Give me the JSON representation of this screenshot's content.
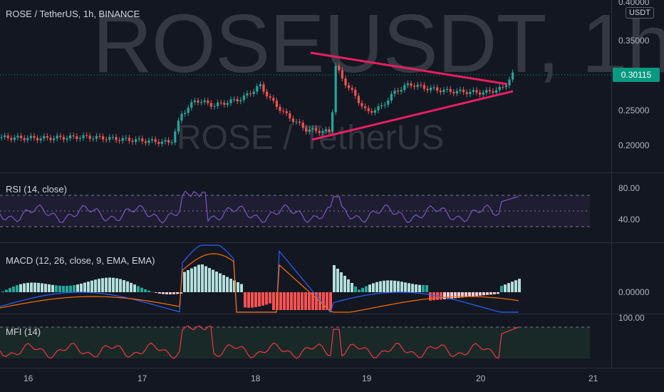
{
  "chart_header": {
    "title": "ROSE / TetherUS, 1h, BINANCE"
  },
  "watermark": {
    "symbol_interval": "ROSEUSDT, 1h",
    "description": "ROSE / TetherUS"
  },
  "price_axis": {
    "currency": "USDT",
    "ticks": [
      "0.40000",
      "0.35000",
      "0.25000",
      "0.20000"
    ],
    "last_price": "0.30115",
    "last_price_color": "#089981"
  },
  "rsi_pane": {
    "label": "RSI (14, close)",
    "ticks": [
      "80.00",
      "40.00"
    ],
    "line_color": "#7e57c2"
  },
  "macd_pane": {
    "label": "MACD (12, 26, close, 9, EMA, EMA)",
    "ticks": [
      "0.00000"
    ],
    "macd_color": "#2962ff",
    "signal_color": "#ff6d00"
  },
  "mfi_pane": {
    "label": "MFI (14)",
    "ticks": [
      "100.00"
    ],
    "line_color": "#f23645"
  },
  "time_axis": {
    "ticks": [
      "16",
      "17",
      "18",
      "19",
      "20",
      "21"
    ]
  },
  "drawing": {
    "tool": "triangle-pattern",
    "color": "#e91e63"
  },
  "colors": {
    "up": "#26a69a",
    "down": "#ef5350",
    "background": "#131722"
  }
}
